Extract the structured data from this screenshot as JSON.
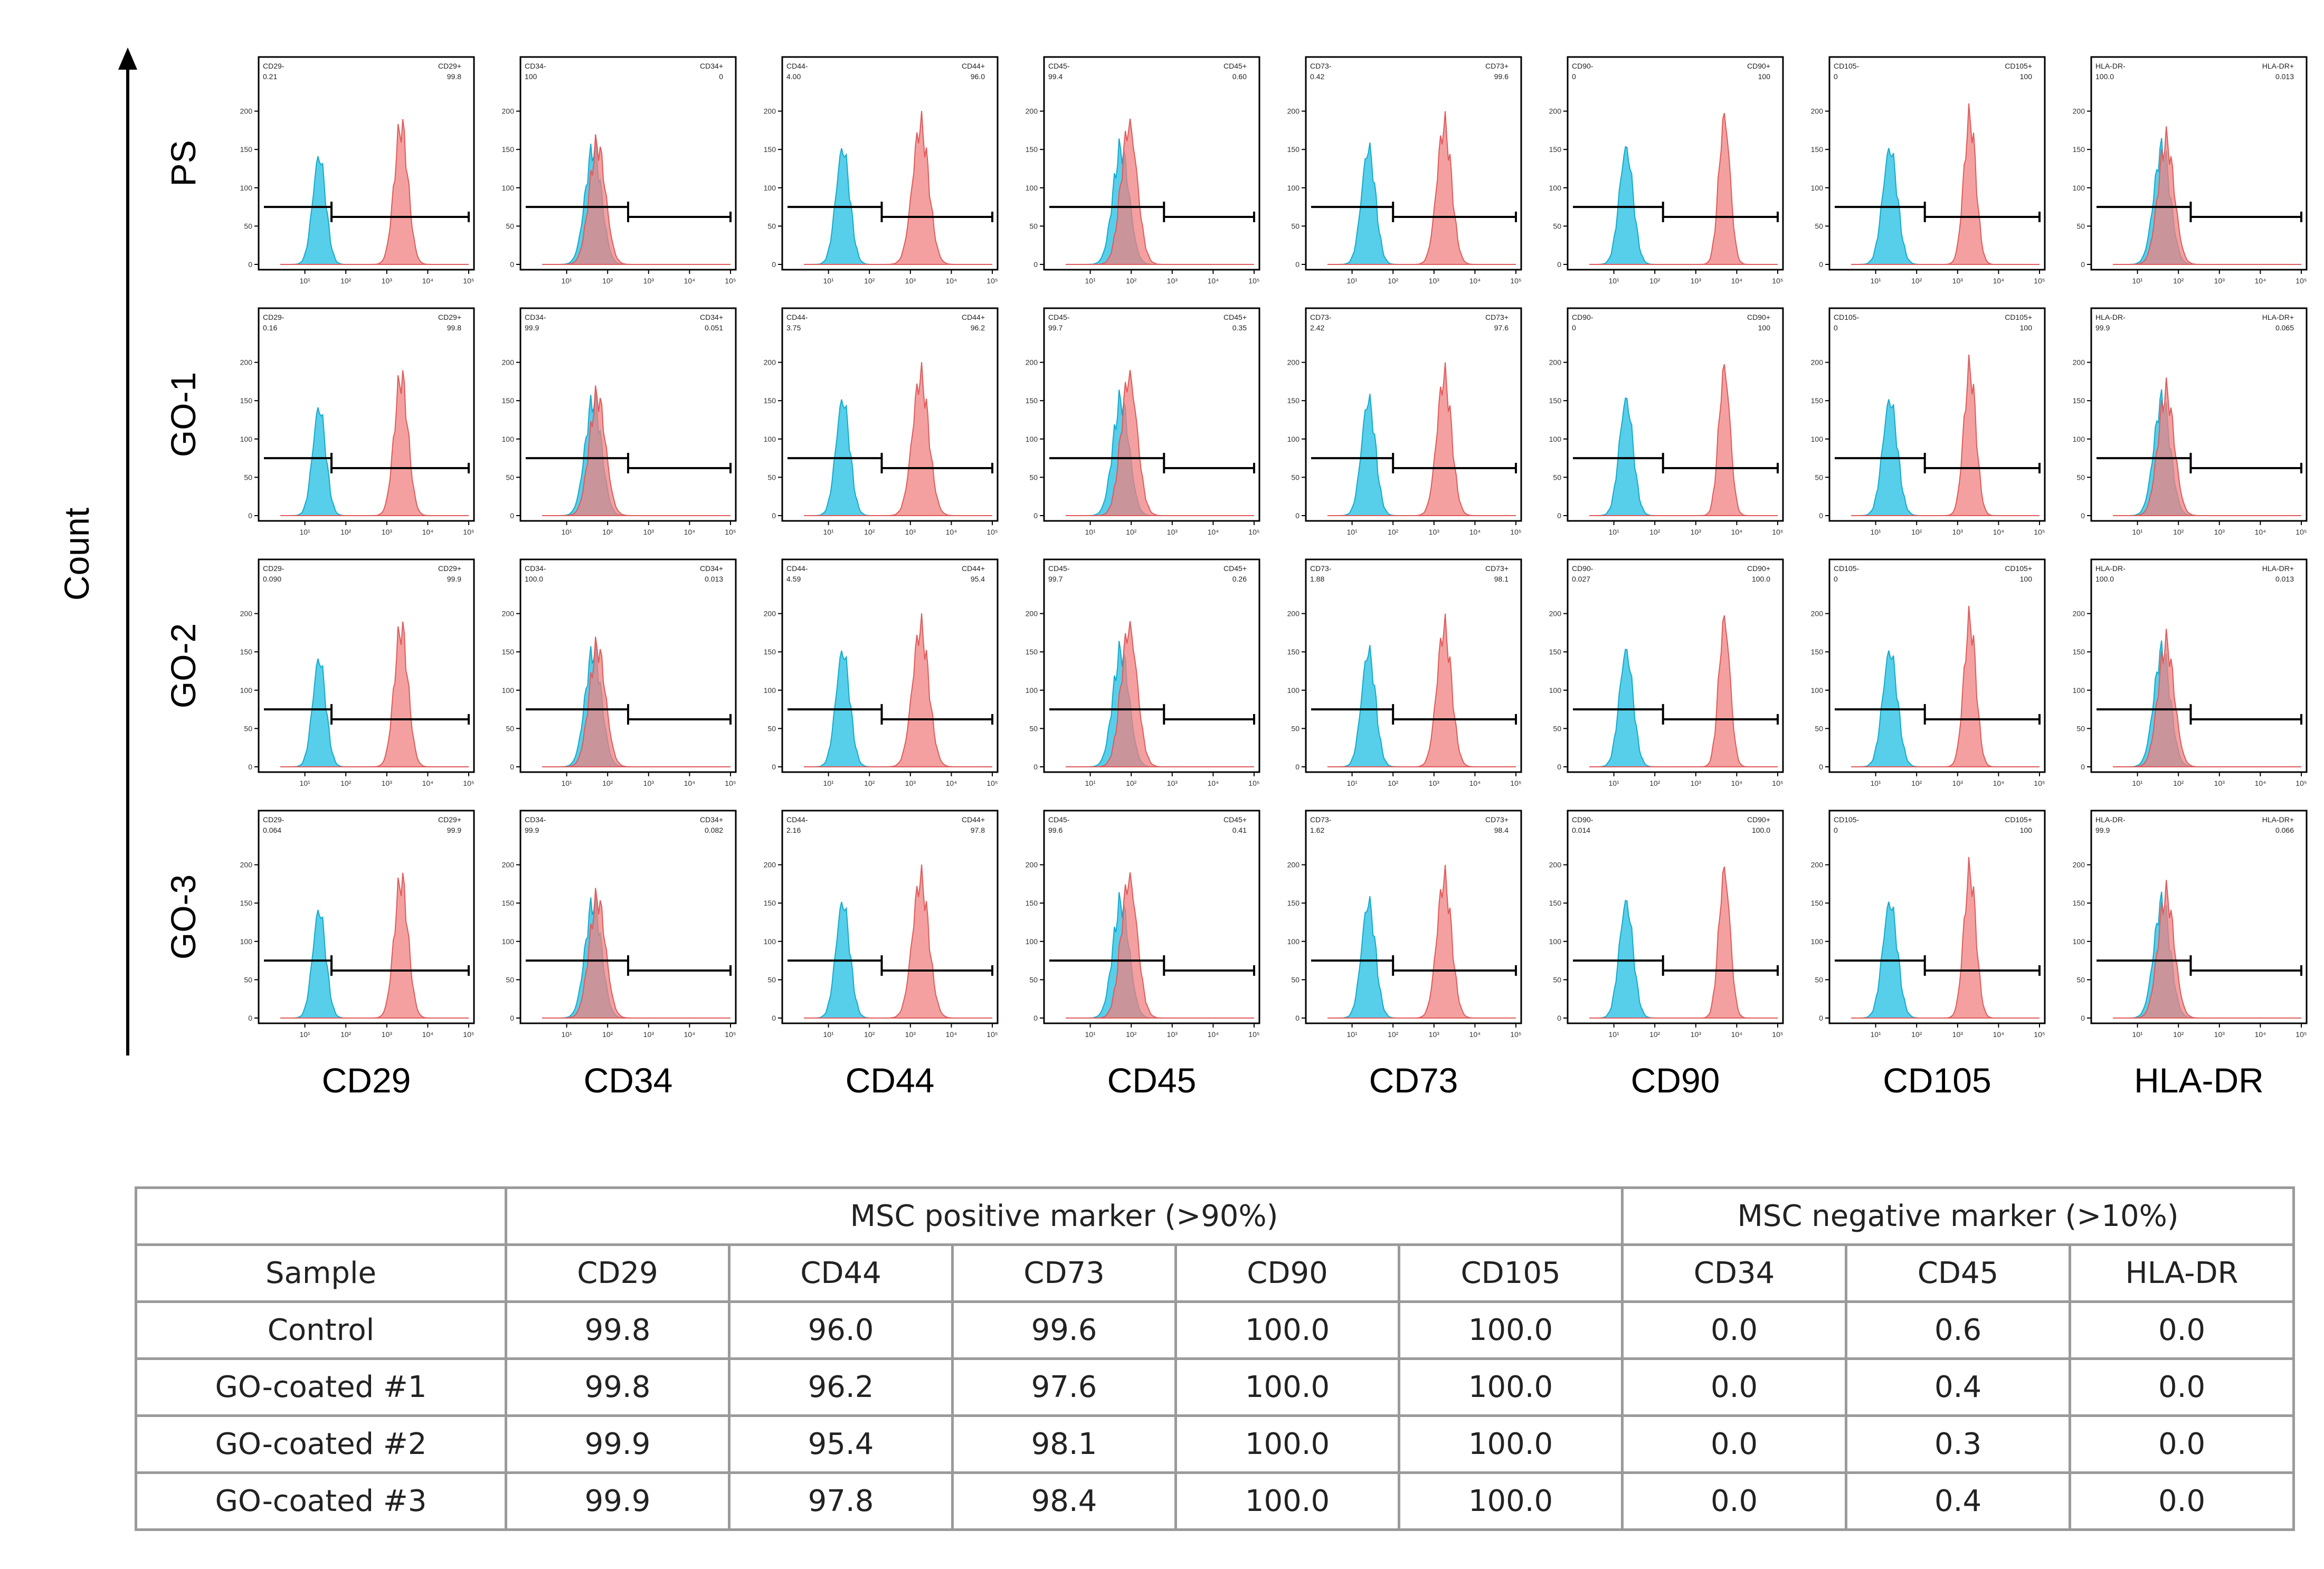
{
  "chart_data": {
    "type": "histogram-grid",
    "y_axis_label": "Count",
    "rows": [
      "PS",
      "GO-1",
      "GO-2",
      "GO-3"
    ],
    "columns": [
      "CD29",
      "CD34",
      "CD44",
      "CD45",
      "CD73",
      "CD90",
      "CD105",
      "HLA-DR"
    ],
    "x_scale": "log",
    "x_ticks": [
      "10¹",
      "10²",
      "10³",
      "10⁴",
      "10⁵"
    ],
    "y_ticks": [
      "0",
      "50",
      "100",
      "150",
      "200"
    ],
    "series_colors": {
      "isotype": "#39c7e6",
      "marker": "#f08080",
      "overlap": "#7b9aac"
    },
    "panels": [
      [
        {
          "neg_label": "CD29-",
          "neg_value": "0.21",
          "pos_label": "CD29+",
          "pos_value": "99.8",
          "ymax": 250,
          "iso": {
            "mu": 1.35,
            "sd": 0.16,
            "h": 140
          },
          "mark": {
            "mu": 3.35,
            "sd": 0.17,
            "h": 180
          },
          "gate_neg": [
            0.0,
            1.65
          ],
          "gate_pos": [
            1.65,
            5.0
          ],
          "gate_neg_y": 75,
          "gate_pos_y": 62
        },
        {
          "neg_label": "CD34-",
          "neg_value": "100",
          "pos_label": "CD34+",
          "pos_value": "0",
          "ymax": 250,
          "iso": {
            "mu": 1.65,
            "sd": 0.2,
            "h": 150
          },
          "mark": {
            "mu": 1.75,
            "sd": 0.2,
            "h": 155
          },
          "gate_neg": [
            0.0,
            2.5
          ],
          "gate_pos": [
            2.5,
            5.0
          ],
          "gate_neg_y": 75,
          "gate_pos_y": 62
        },
        {
          "neg_label": "CD44-",
          "neg_value": "4.00",
          "pos_label": "CD44+",
          "pos_value": "96.0",
          "ymax": 250,
          "iso": {
            "mu": 1.35,
            "sd": 0.17,
            "h": 150
          },
          "mark": {
            "mu": 3.25,
            "sd": 0.2,
            "h": 180
          },
          "gate_neg": [
            0.0,
            2.3
          ],
          "gate_pos": [
            2.3,
            5.0
          ],
          "gate_neg_y": 75,
          "gate_pos_y": 62
        },
        {
          "neg_label": "CD45-",
          "neg_value": "99.4",
          "pos_label": "CD45+",
          "pos_value": "0.60",
          "ymax": 250,
          "iso": {
            "mu": 1.75,
            "sd": 0.2,
            "h": 150
          },
          "mark": {
            "mu": 1.95,
            "sd": 0.2,
            "h": 180
          },
          "gate_neg": [
            0.0,
            2.8
          ],
          "gate_pos": [
            2.8,
            5.0
          ],
          "gate_neg_y": 75,
          "gate_pos_y": 62
        },
        {
          "neg_label": "CD73-",
          "neg_value": "0.42",
          "pos_label": "CD73+",
          "pos_value": "99.6",
          "ymax": 250,
          "iso": {
            "mu": 1.4,
            "sd": 0.17,
            "h": 150
          },
          "mark": {
            "mu": 3.25,
            "sd": 0.18,
            "h": 180
          },
          "gate_neg": [
            0.0,
            2.0
          ],
          "gate_pos": [
            2.0,
            5.0
          ],
          "gate_neg_y": 75,
          "gate_pos_y": 62
        },
        {
          "neg_label": "CD90-",
          "neg_value": "0",
          "pos_label": "CD90+",
          "pos_value": "100",
          "ymax": 250,
          "iso": {
            "mu": 1.3,
            "sd": 0.17,
            "h": 150
          },
          "mark": {
            "mu": 3.7,
            "sd": 0.14,
            "h": 190
          },
          "gate_neg": [
            0.0,
            2.2
          ],
          "gate_pos": [
            2.2,
            5.0
          ],
          "gate_neg_y": 75,
          "gate_pos_y": 62
        },
        {
          "neg_label": "CD105-",
          "neg_value": "0",
          "pos_label": "CD105+",
          "pos_value": "100",
          "ymax": 250,
          "iso": {
            "mu": 1.35,
            "sd": 0.18,
            "h": 150
          },
          "mark": {
            "mu": 3.3,
            "sd": 0.15,
            "h": 190
          },
          "gate_neg": [
            0.0,
            2.2
          ],
          "gate_pos": [
            2.2,
            5.0
          ],
          "gate_neg_y": 75,
          "gate_pos_y": 62
        },
        {
          "neg_label": "HLA-DR-",
          "neg_value": "100.0",
          "pos_label": "HLA-DR+",
          "pos_value": "0.013",
          "ymax": 250,
          "iso": {
            "mu": 1.6,
            "sd": 0.2,
            "h": 150
          },
          "mark": {
            "mu": 1.7,
            "sd": 0.2,
            "h": 160
          },
          "gate_neg": [
            0.0,
            2.3
          ],
          "gate_pos": [
            2.3,
            5.0
          ],
          "gate_neg_y": 75,
          "gate_pos_y": 62
        }
      ],
      [
        {
          "neg_label": "CD29-",
          "neg_value": "0.16",
          "pos_label": "CD29+",
          "pos_value": "99.8",
          "ymax": 250,
          "iso": {
            "mu": 1.35,
            "sd": 0.16,
            "h": 140
          },
          "mark": {
            "mu": 3.35,
            "sd": 0.17,
            "h": 180
          },
          "gate_neg": [
            0.0,
            1.65
          ],
          "gate_pos": [
            1.65,
            5.0
          ],
          "gate_neg_y": 75,
          "gate_pos_y": 62
        },
        {
          "neg_label": "CD34-",
          "neg_value": "99.9",
          "pos_label": "CD34+",
          "pos_value": "0.051",
          "ymax": 250,
          "iso": {
            "mu": 1.65,
            "sd": 0.2,
            "h": 150
          },
          "mark": {
            "mu": 1.75,
            "sd": 0.2,
            "h": 155
          },
          "gate_neg": [
            0.0,
            2.5
          ],
          "gate_pos": [
            2.5,
            5.0
          ],
          "gate_neg_y": 75,
          "gate_pos_y": 62
        },
        {
          "neg_label": "CD44-",
          "neg_value": "3.75",
          "pos_label": "CD44+",
          "pos_value": "96.2",
          "ymax": 250,
          "iso": {
            "mu": 1.35,
            "sd": 0.17,
            "h": 150
          },
          "mark": {
            "mu": 3.25,
            "sd": 0.2,
            "h": 180
          },
          "gate_neg": [
            0.0,
            2.3
          ],
          "gate_pos": [
            2.3,
            5.0
          ],
          "gate_neg_y": 75,
          "gate_pos_y": 62
        },
        {
          "neg_label": "CD45-",
          "neg_value": "99.7",
          "pos_label": "CD45+",
          "pos_value": "0.35",
          "ymax": 250,
          "iso": {
            "mu": 1.75,
            "sd": 0.2,
            "h": 150
          },
          "mark": {
            "mu": 1.95,
            "sd": 0.2,
            "h": 180
          },
          "gate_neg": [
            0.0,
            2.8
          ],
          "gate_pos": [
            2.8,
            5.0
          ],
          "gate_neg_y": 75,
          "gate_pos_y": 62
        },
        {
          "neg_label": "CD73-",
          "neg_value": "2.42",
          "pos_label": "CD73+",
          "pos_value": "97.6",
          "ymax": 250,
          "iso": {
            "mu": 1.4,
            "sd": 0.17,
            "h": 150
          },
          "mark": {
            "mu": 3.25,
            "sd": 0.18,
            "h": 180
          },
          "gate_neg": [
            0.0,
            2.0
          ],
          "gate_pos": [
            2.0,
            5.0
          ],
          "gate_neg_y": 75,
          "gate_pos_y": 62
        },
        {
          "neg_label": "CD90-",
          "neg_value": "0",
          "pos_label": "CD90+",
          "pos_value": "100",
          "ymax": 250,
          "iso": {
            "mu": 1.3,
            "sd": 0.17,
            "h": 150
          },
          "mark": {
            "mu": 3.7,
            "sd": 0.14,
            "h": 190
          },
          "gate_neg": [
            0.0,
            2.2
          ],
          "gate_pos": [
            2.2,
            5.0
          ],
          "gate_neg_y": 75,
          "gate_pos_y": 62
        },
        {
          "neg_label": "CD105-",
          "neg_value": "0",
          "pos_label": "CD105+",
          "pos_value": "100",
          "ymax": 250,
          "iso": {
            "mu": 1.35,
            "sd": 0.18,
            "h": 150
          },
          "mark": {
            "mu": 3.3,
            "sd": 0.15,
            "h": 190
          },
          "gate_neg": [
            0.0,
            2.2
          ],
          "gate_pos": [
            2.2,
            5.0
          ],
          "gate_neg_y": 75,
          "gate_pos_y": 62
        },
        {
          "neg_label": "HLA-DR-",
          "neg_value": "99.9",
          "pos_label": "HLA-DR+",
          "pos_value": "0.065",
          "ymax": 250,
          "iso": {
            "mu": 1.6,
            "sd": 0.2,
            "h": 150
          },
          "mark": {
            "mu": 1.7,
            "sd": 0.2,
            "h": 160
          },
          "gate_neg": [
            0.0,
            2.3
          ],
          "gate_pos": [
            2.3,
            5.0
          ],
          "gate_neg_y": 75,
          "gate_pos_y": 62
        }
      ],
      [
        {
          "neg_label": "CD29-",
          "neg_value": "0.090",
          "pos_label": "CD29+",
          "pos_value": "99.9",
          "ymax": 250,
          "iso": {
            "mu": 1.35,
            "sd": 0.16,
            "h": 140
          },
          "mark": {
            "mu": 3.35,
            "sd": 0.17,
            "h": 180
          },
          "gate_neg": [
            0.0,
            1.65
          ],
          "gate_pos": [
            1.65,
            5.0
          ],
          "gate_neg_y": 75,
          "gate_pos_y": 62
        },
        {
          "neg_label": "CD34-",
          "neg_value": "100.0",
          "pos_label": "CD34+",
          "pos_value": "0.013",
          "ymax": 250,
          "iso": {
            "mu": 1.65,
            "sd": 0.2,
            "h": 150
          },
          "mark": {
            "mu": 1.75,
            "sd": 0.2,
            "h": 155
          },
          "gate_neg": [
            0.0,
            2.5
          ],
          "gate_pos": [
            2.5,
            5.0
          ],
          "gate_neg_y": 75,
          "gate_pos_y": 62
        },
        {
          "neg_label": "CD44-",
          "neg_value": "4.59",
          "pos_label": "CD44+",
          "pos_value": "95.4",
          "ymax": 250,
          "iso": {
            "mu": 1.35,
            "sd": 0.17,
            "h": 150
          },
          "mark": {
            "mu": 3.25,
            "sd": 0.2,
            "h": 180
          },
          "gate_neg": [
            0.0,
            2.3
          ],
          "gate_pos": [
            2.3,
            5.0
          ],
          "gate_neg_y": 75,
          "gate_pos_y": 62
        },
        {
          "neg_label": "CD45-",
          "neg_value": "99.7",
          "pos_label": "CD45+",
          "pos_value": "0.26",
          "ymax": 250,
          "iso": {
            "mu": 1.75,
            "sd": 0.2,
            "h": 150
          },
          "mark": {
            "mu": 1.95,
            "sd": 0.2,
            "h": 180
          },
          "gate_neg": [
            0.0,
            2.8
          ],
          "gate_pos": [
            2.8,
            5.0
          ],
          "gate_neg_y": 75,
          "gate_pos_y": 62
        },
        {
          "neg_label": "CD73-",
          "neg_value": "1.88",
          "pos_label": "CD73+",
          "pos_value": "98.1",
          "ymax": 250,
          "iso": {
            "mu": 1.4,
            "sd": 0.17,
            "h": 150
          },
          "mark": {
            "mu": 3.25,
            "sd": 0.18,
            "h": 180
          },
          "gate_neg": [
            0.0,
            2.0
          ],
          "gate_pos": [
            2.0,
            5.0
          ],
          "gate_neg_y": 75,
          "gate_pos_y": 62
        },
        {
          "neg_label": "CD90-",
          "neg_value": "0.027",
          "pos_label": "CD90+",
          "pos_value": "100.0",
          "ymax": 250,
          "iso": {
            "mu": 1.3,
            "sd": 0.17,
            "h": 150
          },
          "mark": {
            "mu": 3.7,
            "sd": 0.14,
            "h": 190
          },
          "gate_neg": [
            0.0,
            2.2
          ],
          "gate_pos": [
            2.2,
            5.0
          ],
          "gate_neg_y": 75,
          "gate_pos_y": 62
        },
        {
          "neg_label": "CD105-",
          "neg_value": "0",
          "pos_label": "CD105+",
          "pos_value": "100",
          "ymax": 250,
          "iso": {
            "mu": 1.35,
            "sd": 0.18,
            "h": 150
          },
          "mark": {
            "mu": 3.3,
            "sd": 0.15,
            "h": 190
          },
          "gate_neg": [
            0.0,
            2.2
          ],
          "gate_pos": [
            2.2,
            5.0
          ],
          "gate_neg_y": 75,
          "gate_pos_y": 62
        },
        {
          "neg_label": "HLA-DR-",
          "neg_value": "100.0",
          "pos_label": "HLA-DR+",
          "pos_value": "0.013",
          "ymax": 250,
          "iso": {
            "mu": 1.6,
            "sd": 0.2,
            "h": 150
          },
          "mark": {
            "mu": 1.7,
            "sd": 0.2,
            "h": 160
          },
          "gate_neg": [
            0.0,
            2.3
          ],
          "gate_pos": [
            2.3,
            5.0
          ],
          "gate_neg_y": 75,
          "gate_pos_y": 62
        }
      ],
      [
        {
          "neg_label": "CD29-",
          "neg_value": "0.064",
          "pos_label": "CD29+",
          "pos_value": "99.9",
          "ymax": 250,
          "iso": {
            "mu": 1.35,
            "sd": 0.16,
            "h": 140
          },
          "mark": {
            "mu": 3.35,
            "sd": 0.17,
            "h": 180
          },
          "gate_neg": [
            0.0,
            1.65
          ],
          "gate_pos": [
            1.65,
            5.0
          ],
          "gate_neg_y": 75,
          "gate_pos_y": 62
        },
        {
          "neg_label": "CD34-",
          "neg_value": "99.9",
          "pos_label": "CD34+",
          "pos_value": "0.082",
          "ymax": 250,
          "iso": {
            "mu": 1.65,
            "sd": 0.2,
            "h": 150
          },
          "mark": {
            "mu": 1.75,
            "sd": 0.2,
            "h": 155
          },
          "gate_neg": [
            0.0,
            2.5
          ],
          "gate_pos": [
            2.5,
            5.0
          ],
          "gate_neg_y": 75,
          "gate_pos_y": 62
        },
        {
          "neg_label": "CD44-",
          "neg_value": "2.16",
          "pos_label": "CD44+",
          "pos_value": "97.8",
          "ymax": 250,
          "iso": {
            "mu": 1.35,
            "sd": 0.17,
            "h": 150
          },
          "mark": {
            "mu": 3.25,
            "sd": 0.2,
            "h": 180
          },
          "gate_neg": [
            0.0,
            2.3
          ],
          "gate_pos": [
            2.3,
            5.0
          ],
          "gate_neg_y": 75,
          "gate_pos_y": 62
        },
        {
          "neg_label": "CD45-",
          "neg_value": "99.6",
          "pos_label": "CD45+",
          "pos_value": "0.41",
          "ymax": 250,
          "iso": {
            "mu": 1.75,
            "sd": 0.2,
            "h": 150
          },
          "mark": {
            "mu": 1.95,
            "sd": 0.2,
            "h": 180
          },
          "gate_neg": [
            0.0,
            2.8
          ],
          "gate_pos": [
            2.8,
            5.0
          ],
          "gate_neg_y": 75,
          "gate_pos_y": 62
        },
        {
          "neg_label": "CD73-",
          "neg_value": "1.62",
          "pos_label": "CD73+",
          "pos_value": "98.4",
          "ymax": 250,
          "iso": {
            "mu": 1.4,
            "sd": 0.17,
            "h": 150
          },
          "mark": {
            "mu": 3.25,
            "sd": 0.18,
            "h": 180
          },
          "gate_neg": [
            0.0,
            2.0
          ],
          "gate_pos": [
            2.0,
            5.0
          ],
          "gate_neg_y": 75,
          "gate_pos_y": 62
        },
        {
          "neg_label": "CD90-",
          "neg_value": "0.014",
          "pos_label": "CD90+",
          "pos_value": "100.0",
          "ymax": 250,
          "iso": {
            "mu": 1.3,
            "sd": 0.17,
            "h": 150
          },
          "mark": {
            "mu": 3.7,
            "sd": 0.14,
            "h": 190
          },
          "gate_neg": [
            0.0,
            2.2
          ],
          "gate_pos": [
            2.2,
            5.0
          ],
          "gate_neg_y": 75,
          "gate_pos_y": 62
        },
        {
          "neg_label": "CD105-",
          "neg_value": "0",
          "pos_label": "CD105+",
          "pos_value": "100",
          "ymax": 250,
          "iso": {
            "mu": 1.35,
            "sd": 0.18,
            "h": 150
          },
          "mark": {
            "mu": 3.3,
            "sd": 0.15,
            "h": 190
          },
          "gate_neg": [
            0.0,
            2.2
          ],
          "gate_pos": [
            2.2,
            5.0
          ],
          "gate_neg_y": 75,
          "gate_pos_y": 62
        },
        {
          "neg_label": "HLA-DR-",
          "neg_value": "99.9",
          "pos_label": "HLA-DR+",
          "pos_value": "0.066",
          "ymax": 250,
          "iso": {
            "mu": 1.6,
            "sd": 0.2,
            "h": 150
          },
          "mark": {
            "mu": 1.7,
            "sd": 0.2,
            "h": 160
          },
          "gate_neg": [
            0.0,
            2.3
          ],
          "gate_pos": [
            2.3,
            5.0
          ],
          "gate_neg_y": 75,
          "gate_pos_y": 62
        }
      ]
    ],
    "table": {
      "group_headers": [
        "MSC positive marker (>90%)",
        "MSC negative marker (>10%)"
      ],
      "header": [
        "Sample",
        "CD29",
        "CD44",
        "CD73",
        "CD90",
        "CD105",
        "CD34",
        "CD45",
        "HLA-DR"
      ],
      "rows": [
        [
          "Control",
          "99.8",
          "96.0",
          "99.6",
          "100.0",
          "100.0",
          "0.0",
          "0.6",
          "0.0"
        ],
        [
          "GO-coated #1",
          "99.8",
          "96.2",
          "97.6",
          "100.0",
          "100.0",
          "0.0",
          "0.4",
          "0.0"
        ],
        [
          "GO-coated #2",
          "99.9",
          "95.4",
          "98.1",
          "100.0",
          "100.0",
          "0.0",
          "0.3",
          "0.0"
        ],
        [
          "GO-coated #3",
          "99.9",
          "97.8",
          "98.4",
          "100.0",
          "100.0",
          "0.0",
          "0.4",
          "0.0"
        ]
      ]
    }
  }
}
